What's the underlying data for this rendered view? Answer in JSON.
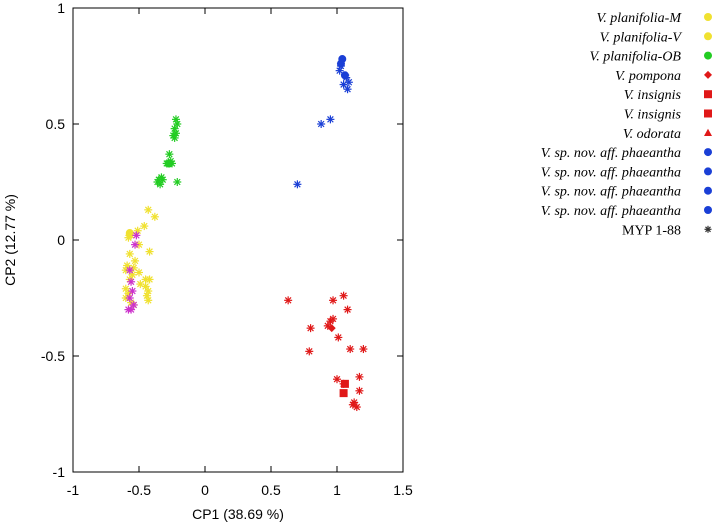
{
  "chart_data": {
    "type": "scatter",
    "xlabel": "CP1 (38.69 %)",
    "ylabel": "CP2 (12.77 %)",
    "xlim": [
      -1,
      1.5
    ],
    "ylim": [
      -1,
      1
    ],
    "xticks": [
      "-1",
      "-0.5",
      "0",
      "0.5",
      "1",
      "1.5"
    ],
    "xtick_values": [
      -1,
      -0.5,
      0,
      0.5,
      1,
      1.5
    ],
    "yticks": [
      "1",
      "0.5",
      "0",
      "-0.5",
      "-1"
    ],
    "ytick_values": [
      1,
      0.5,
      0,
      -0.5,
      -1
    ],
    "grid": false,
    "legend_position": "outside-right",
    "legend": [
      {
        "label": "V. planifolia-M",
        "italic": true,
        "marker": "circle",
        "color": "#f0e130"
      },
      {
        "label": "V. planifolia-V",
        "italic": true,
        "marker": "circle",
        "color": "#f0e130"
      },
      {
        "label": "V. planifolia-OB",
        "italic": true,
        "marker": "circle",
        "color": "#22cc22"
      },
      {
        "label": "V. pompona",
        "italic": true,
        "marker": "diamond",
        "color": "#e01818"
      },
      {
        "label": "V. insignis",
        "italic": true,
        "marker": "square",
        "color": "#e01818"
      },
      {
        "label": "V. insignis",
        "italic": true,
        "marker": "square",
        "color": "#e01818"
      },
      {
        "label": "V. odorata",
        "italic": true,
        "marker": "triangle",
        "color": "#e01818"
      },
      {
        "label": "V. sp. nov. aff. phaeantha",
        "italic": true,
        "marker": "circle",
        "color": "#1a3fd6"
      },
      {
        "label": "V. sp. nov. aff. phaeantha",
        "italic": true,
        "marker": "circle",
        "color": "#1a3fd6"
      },
      {
        "label": "V. sp. nov. aff. phaeantha",
        "italic": true,
        "marker": "circle",
        "color": "#1a3fd6"
      },
      {
        "label": "V. sp. nov. aff. phaeantha",
        "italic": true,
        "marker": "circle",
        "color": "#1a3fd6"
      },
      {
        "label": "MYP 1-88",
        "italic": false,
        "marker": "asterisk",
        "color": "#333333"
      }
    ],
    "series": [
      {
        "group": "green",
        "color": "#22cc22",
        "points": [
          [
            -0.22,
            0.52
          ],
          [
            -0.21,
            0.5
          ],
          [
            -0.23,
            0.48
          ],
          [
            -0.22,
            0.46
          ],
          [
            -0.24,
            0.45
          ],
          [
            -0.23,
            0.44
          ],
          [
            -0.27,
            0.37
          ],
          [
            -0.26,
            0.34
          ],
          [
            -0.28,
            0.33
          ],
          [
            -0.27,
            0.33
          ],
          [
            -0.29,
            0.33
          ],
          [
            -0.25,
            0.33
          ],
          [
            -0.33,
            0.27
          ],
          [
            -0.35,
            0.26
          ],
          [
            -0.36,
            0.25
          ],
          [
            -0.32,
            0.26
          ],
          [
            -0.34,
            0.24
          ],
          [
            -0.21,
            0.25
          ]
        ],
        "circles": [
          [
            -0.27,
            0.33
          ]
        ]
      },
      {
        "group": "yellow",
        "color": "#f0e130",
        "points": [
          [
            -0.43,
            0.13
          ],
          [
            -0.38,
            0.1
          ],
          [
            -0.46,
            0.06
          ],
          [
            -0.51,
            0.04
          ],
          [
            -0.56,
            0.02
          ],
          [
            -0.58,
            0.01
          ],
          [
            -0.5,
            -0.02
          ],
          [
            -0.42,
            -0.05
          ],
          [
            -0.57,
            -0.06
          ],
          [
            -0.59,
            -0.11
          ],
          [
            -0.54,
            -0.12
          ],
          [
            -0.6,
            -0.13
          ],
          [
            -0.55,
            -0.15
          ],
          [
            -0.45,
            -0.17
          ],
          [
            -0.42,
            -0.17
          ],
          [
            -0.57,
            -0.17
          ],
          [
            -0.49,
            -0.19
          ],
          [
            -0.45,
            -0.2
          ],
          [
            -0.6,
            -0.21
          ],
          [
            -0.43,
            -0.22
          ],
          [
            -0.58,
            -0.23
          ],
          [
            -0.44,
            -0.24
          ],
          [
            -0.6,
            -0.25
          ],
          [
            -0.43,
            -0.26
          ],
          [
            -0.56,
            -0.27
          ],
          [
            -0.54,
            -0.28
          ],
          [
            -0.5,
            -0.14
          ],
          [
            -0.53,
            -0.09
          ]
        ],
        "circles": [
          [
            -0.57,
            0.03
          ]
        ]
      },
      {
        "group": "magenta",
        "color": "#cc33cc",
        "points": [
          [
            -0.52,
            0.02
          ],
          [
            -0.53,
            -0.02
          ],
          [
            -0.57,
            -0.13
          ],
          [
            -0.56,
            -0.18
          ],
          [
            -0.55,
            -0.22
          ],
          [
            -0.57,
            -0.25
          ],
          [
            -0.58,
            -0.3
          ],
          [
            -0.56,
            -0.3
          ],
          [
            -0.54,
            -0.28
          ]
        ],
        "circles": []
      },
      {
        "group": "blue",
        "color": "#1a3fd6",
        "points": [
          [
            1.03,
            0.75
          ],
          [
            1.02,
            0.73
          ],
          [
            1.07,
            0.7
          ],
          [
            1.09,
            0.68
          ],
          [
            1.05,
            0.67
          ],
          [
            1.08,
            0.65
          ],
          [
            0.95,
            0.52
          ],
          [
            0.88,
            0.5
          ],
          [
            0.7,
            0.24
          ]
        ],
        "circles": [
          [
            1.04,
            0.78
          ],
          [
            1.03,
            0.76
          ],
          [
            1.06,
            0.71
          ]
        ]
      },
      {
        "group": "red",
        "color": "#e01818",
        "points": [
          [
            0.63,
            -0.26
          ],
          [
            1.05,
            -0.24
          ],
          [
            0.97,
            -0.26
          ],
          [
            1.08,
            -0.3
          ],
          [
            0.8,
            -0.38
          ],
          [
            0.95,
            -0.35
          ],
          [
            0.97,
            -0.34
          ],
          [
            0.93,
            -0.37
          ],
          [
            1.01,
            -0.42
          ],
          [
            0.79,
            -0.48
          ],
          [
            1.2,
            -0.47
          ],
          [
            1.1,
            -0.47
          ],
          [
            1.0,
            -0.6
          ],
          [
            1.05,
            -0.62
          ],
          [
            1.17,
            -0.59
          ],
          [
            1.17,
            -0.65
          ],
          [
            1.13,
            -0.7
          ],
          [
            1.15,
            -0.72
          ],
          [
            1.12,
            -0.71
          ]
        ],
        "circles": [],
        "squares": [
          [
            1.06,
            -0.62
          ],
          [
            1.05,
            -0.66
          ]
        ],
        "diamonds": [
          [
            0.96,
            -0.38
          ]
        ]
      }
    ]
  }
}
